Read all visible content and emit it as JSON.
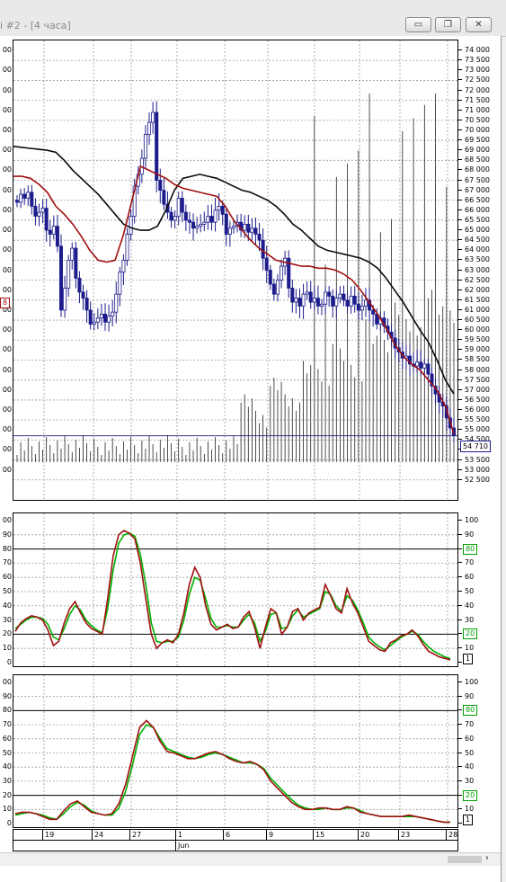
{
  "window": {
    "title": "i #2 - [4 часа]",
    "buttons": {
      "minimize": "▭",
      "restore": "❐",
      "close": "✕"
    }
  },
  "colors": {
    "candle": "#1c1c8c",
    "slow_ma": "#0a0a0a",
    "fast_ma": "#a01010",
    "grid": "#9a9a9a",
    "signal_green": "#00b000",
    "main_red": "#a01010"
  },
  "labels": {
    "last_price": "54 710",
    "left_marker": "8"
  },
  "chart_data": [
    {
      "type": "line",
      "title": "",
      "ylim": [
        51500,
        74500
      ],
      "y_ticks": [
        "74 000",
        "73 500",
        "73 000",
        "72 500",
        "72 000",
        "71 500",
        "71 000",
        "70 500",
        "70 000",
        "69 500",
        "69 000",
        "68 500",
        "68 000",
        "67 500",
        "67 000",
        "66 500",
        "66 000",
        "65 500",
        "65 000",
        "64 500",
        "64 000",
        "63 500",
        "63 000",
        "62 500",
        "62 000",
        "61 500",
        "61 000",
        "60 500",
        "60 000",
        "59 500",
        "59 000",
        "58 500",
        "58 000",
        "57 500",
        "57 000",
        "56 500",
        "56 000",
        "55 500",
        "55 000",
        "54 500",
        "54 000",
        "53 500",
        "53 000",
        "52 500"
      ],
      "closes": [
        66400,
        66800,
        66600,
        66900,
        66200,
        65700,
        65900,
        66100,
        65000,
        64800,
        65200,
        64200,
        61000,
        62100,
        63500,
        64100,
        62600,
        61900,
        61600,
        61000,
        60300,
        60400,
        60600,
        60800,
        60400,
        60700,
        60900,
        61800,
        62900,
        63500,
        64800,
        65700,
        67200,
        67800,
        68600,
        69800,
        70400,
        70900,
        67500,
        67000,
        66300,
        65900,
        65500,
        65700,
        66600,
        65900,
        65500,
        65400,
        65100,
        65200,
        65300,
        65400,
        65700,
        65400,
        66000,
        66200,
        65800,
        64800,
        65100,
        65200,
        65400,
        65000,
        65300,
        64900,
        65100,
        64800,
        64500,
        63600,
        63000,
        62300,
        61800,
        62500,
        63200,
        63600,
        62100,
        61400,
        61600,
        61200,
        61800,
        61900,
        61400,
        61600,
        61200,
        61300,
        61900,
        61700,
        61200,
        61600,
        61800,
        61500,
        61200,
        61700,
        61300,
        61000,
        61200,
        61500,
        61000,
        60800,
        60300,
        60600,
        60200,
        59900,
        59600,
        59100,
        58900,
        58600,
        58700,
        58300,
        58200,
        58400,
        58100,
        58300,
        57800,
        57200,
        56800,
        56400,
        56200,
        55600,
        55100,
        54710
      ],
      "ma_slow": [
        69200,
        69150,
        69100,
        69050,
        69000,
        68900,
        68500,
        68000,
        67600,
        67200,
        66800,
        66300,
        65800,
        65300,
        65100,
        65000,
        65000,
        65200,
        66000,
        67000,
        67600,
        67700,
        67800,
        67700,
        67600,
        67400,
        67200,
        67000,
        66900,
        66700,
        66500,
        66200,
        65800,
        65300,
        65000,
        64600,
        64200,
        64000,
        63900,
        63800,
        63700,
        63600,
        63400,
        63100,
        62600,
        62000,
        61400,
        60700,
        60000,
        59400,
        58500,
        57500,
        56800
      ],
      "ma_fast": [
        67700,
        67700,
        67600,
        67300,
        66900,
        66200,
        65800,
        65300,
        64700,
        64000,
        63500,
        63400,
        63500,
        64800,
        66500,
        68200,
        68000,
        67800,
        67600,
        67300,
        67100,
        67000,
        66900,
        66800,
        66700,
        66200,
        65500,
        65000,
        64500,
        64100,
        63800,
        63500,
        63400,
        63300,
        63200,
        63200,
        63100,
        63100,
        63000,
        62800,
        62500,
        62000,
        61400,
        60800,
        60100,
        59300,
        58700,
        58300,
        58000,
        57500,
        57000,
        56200,
        54800
      ],
      "volume_bars": "light_gray_vertical"
    },
    {
      "type": "line",
      "title": "",
      "ylim": [
        0,
        100
      ],
      "y_ticks": [
        "100",
        "90",
        "80",
        "70",
        "60",
        "50",
        "40",
        "30",
        "20",
        "10",
        "0"
      ],
      "levels": [
        "80",
        "20",
        "1"
      ],
      "main": [
        22,
        28,
        31,
        33,
        32,
        30,
        23,
        12,
        15,
        28,
        38,
        43,
        35,
        28,
        24,
        22,
        20,
        45,
        75,
        90,
        93,
        91,
        87,
        70,
        45,
        20,
        10,
        14,
        16,
        14,
        20,
        35,
        55,
        67,
        60,
        40,
        27,
        23,
        25,
        27,
        24,
        25,
        32,
        36,
        25,
        10,
        25,
        38,
        35,
        20,
        25,
        36,
        38,
        30,
        35,
        37,
        39,
        55,
        47,
        38,
        35,
        52,
        42,
        35,
        25,
        15,
        12,
        9,
        8,
        14,
        16,
        19,
        20,
        23,
        19,
        13,
        8,
        6,
        4,
        3,
        2
      ],
      "signal": [
        24,
        27,
        30,
        32,
        32,
        31,
        27,
        18,
        16,
        24,
        34,
        40,
        37,
        30,
        26,
        23,
        21,
        38,
        65,
        84,
        90,
        91,
        89,
        76,
        55,
        28,
        15,
        14,
        15,
        15,
        18,
        30,
        48,
        60,
        58,
        45,
        31,
        25,
        25,
        26,
        25,
        25,
        30,
        34,
        28,
        15,
        22,
        34,
        35,
        24,
        25,
        33,
        37,
        32,
        34,
        36,
        38,
        50,
        48,
        40,
        36,
        47,
        44,
        37,
        28,
        18,
        14,
        11,
        9,
        12,
        15,
        18,
        20,
        22,
        20,
        15,
        11,
        8,
        6,
        4,
        3
      ]
    },
    {
      "type": "line",
      "title": "",
      "ylim": [
        0,
        100
      ],
      "y_ticks": [
        "100",
        "90",
        "80",
        "70",
        "60",
        "50",
        "40",
        "30",
        "20",
        "10",
        "0"
      ],
      "levels": [
        "80",
        "20",
        "1"
      ],
      "main": [
        7,
        8,
        8,
        7,
        5,
        3,
        3,
        9,
        14,
        16,
        12,
        8,
        7,
        6,
        7,
        14,
        28,
        48,
        68,
        73,
        68,
        58,
        51,
        50,
        48,
        46,
        46,
        48,
        50,
        51,
        49,
        46,
        44,
        43,
        44,
        42,
        38,
        30,
        25,
        20,
        15,
        12,
        10,
        10,
        11,
        11,
        10,
        10,
        12,
        11,
        8,
        7,
        6,
        5,
        5,
        5,
        5,
        6,
        5,
        4,
        3,
        2,
        1,
        1
      ],
      "signal": [
        6,
        7,
        8,
        7,
        6,
        4,
        3,
        7,
        12,
        15,
        13,
        9,
        7,
        6,
        6,
        11,
        23,
        42,
        63,
        70,
        68,
        60,
        53,
        51,
        49,
        47,
        46,
        47,
        49,
        50,
        49,
        47,
        45,
        43,
        43,
        42,
        39,
        32,
        27,
        22,
        17,
        13,
        11,
        10,
        10,
        11,
        10,
        10,
        11,
        11,
        9,
        7,
        6,
        5,
        5,
        5,
        5,
        5,
        5,
        4,
        3,
        2,
        1,
        1
      ]
    }
  ],
  "x_axis": {
    "row1": [
      "19",
      "24",
      "27",
      "1",
      "6",
      "9",
      "15",
      "20",
      "23",
      "28"
    ],
    "row2": [
      "Jun"
    ]
  }
}
